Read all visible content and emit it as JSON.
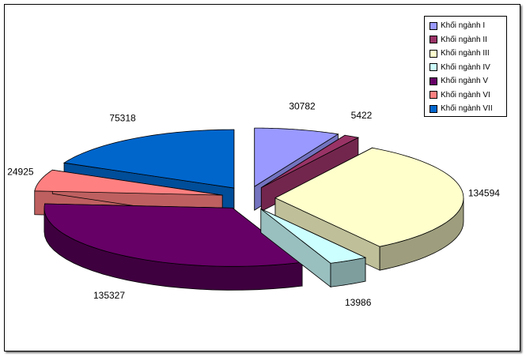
{
  "chart_data": {
    "type": "pie",
    "style": "3D exploded pie",
    "title": "",
    "legend_position": "top-right",
    "slices": [
      {
        "name": "Khối ngành I",
        "value": 30782,
        "color": "#9999FF"
      },
      {
        "name": "Khối ngành II",
        "value": 5422,
        "color": "#993366"
      },
      {
        "name": "Khối ngành III",
        "value": 134594,
        "color": "#FFFFCC"
      },
      {
        "name": "Khối ngành IV",
        "value": 13986,
        "color": "#CCFFFF"
      },
      {
        "name": "Khối ngành V",
        "value": 135327,
        "color": "#660066"
      },
      {
        "name": "Khối ngành VI",
        "value": 24925,
        "color": "#FF8080"
      },
      {
        "name": "Khối ngành VII",
        "value": 75318,
        "color": "#0066CC"
      }
    ]
  }
}
